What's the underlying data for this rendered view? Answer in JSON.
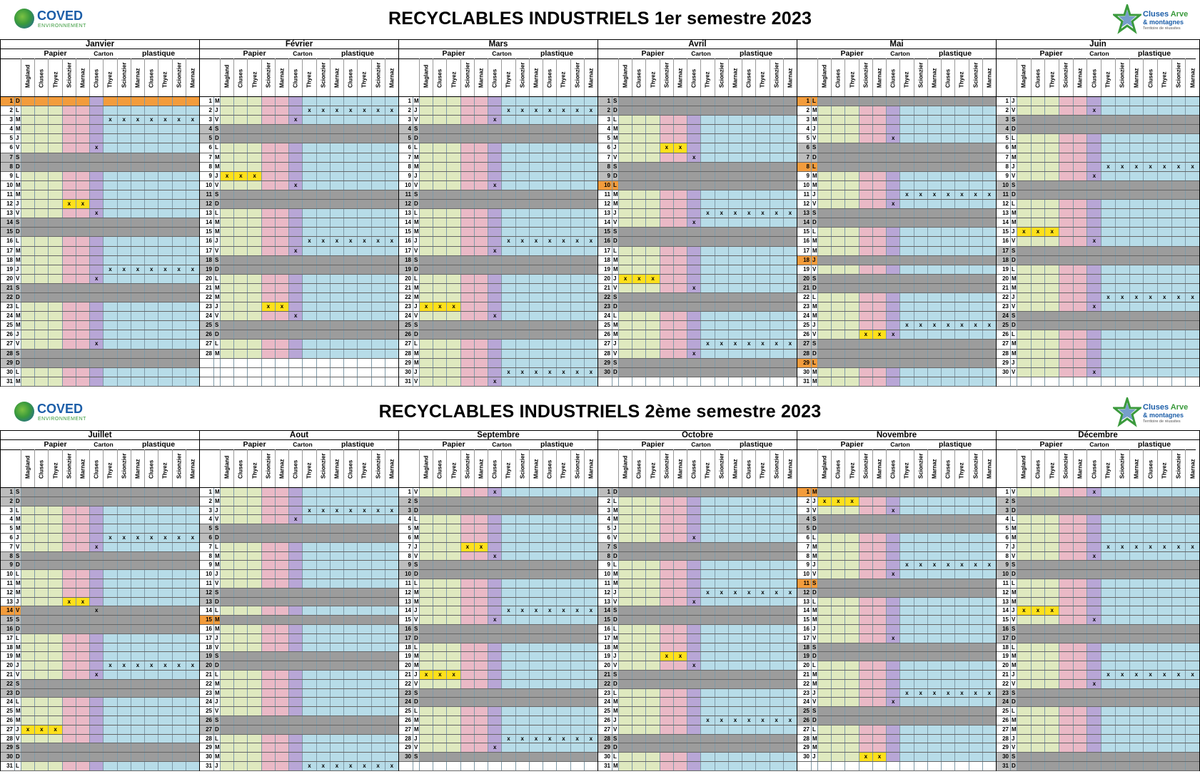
{
  "semesters": [
    {
      "title": "RECYCLABLES  INDUSTRIELS   1er semestre 2023",
      "months": [
        {
          "name": "Janvier",
          "start": 0,
          "days": 31
        },
        {
          "name": "Février",
          "start": 3,
          "days": 28
        },
        {
          "name": "Mars",
          "start": 3,
          "days": 31
        },
        {
          "name": "Avril",
          "start": 6,
          "days": 30
        },
        {
          "name": "Mai",
          "start": 1,
          "days": 31
        },
        {
          "name": "Juin",
          "start": 4,
          "days": 30
        }
      ]
    },
    {
      "title": "RECYCLABLES  INDUSTRIELS 2ème semestre 2023",
      "months": [
        {
          "name": "Juillet",
          "start": 6,
          "days": 31
        },
        {
          "name": "Aout",
          "start": 2,
          "days": 31
        },
        {
          "name": "Septembre",
          "start": 5,
          "days": 30
        },
        {
          "name": "Octobre",
          "start": 0,
          "days": 31
        },
        {
          "name": "Novembre",
          "start": 3,
          "days": 30
        },
        {
          "name": "Décembre",
          "start": 5,
          "days": 31
        }
      ]
    }
  ],
  "logos": {
    "coved_name": "COVED",
    "coved_sub": "ENVIRONNEMENT",
    "cluses_name": "Cluses",
    "cluses_arve": "Arve",
    "cluses_line2": "& montagnes",
    "cluses_tagline": "Territoire de réussites"
  },
  "groups": {
    "papier": "Papier",
    "carton": "Carton",
    "plastique": "plastique"
  },
  "columns": [
    "Magland",
    "Cluses",
    "Thyez",
    "Scionzier",
    "Marnaz",
    "Cluses",
    "Thyez",
    "Scionzier",
    "Marnaz",
    "Cluses",
    "Thyez",
    "Scionzier",
    "Marnaz"
  ],
  "day_letters": [
    "D",
    "L",
    "M",
    "M",
    "J",
    "V",
    "S"
  ],
  "mark": "x",
  "colors": {
    "papier": "#dfe9bf",
    "papier_alt": "#eab9c6",
    "carton": "#b8a6d6",
    "plastique": "#b7dce8",
    "weekend": "#9c9c9c",
    "holiday": "#f39c3c",
    "highlight": "#ffe01b"
  },
  "holidays": {
    "Janvier": [
      1
    ],
    "Avril": [
      10
    ],
    "Mai": [
      1,
      8,
      18,
      29
    ],
    "Juillet": [
      14
    ],
    "Aout": [
      15
    ],
    "Novembre": [
      1,
      11
    ]
  },
  "collections": {
    "Janvier": {
      "yellow": [
        [
          12,
          [
            3,
            4
          ]
        ]
      ],
      "marks": [
        [
          3,
          [
            6,
            7,
            8,
            9,
            10,
            11,
            12
          ]
        ],
        [
          6,
          [
            5
          ]
        ],
        [
          13,
          [
            5
          ]
        ],
        [
          19,
          [
            6,
            7,
            8,
            9,
            10,
            11,
            12
          ]
        ],
        [
          20,
          [
            5
          ]
        ],
        [
          27,
          [
            5
          ]
        ]
      ]
    },
    "Février": {
      "yellow": [
        [
          9,
          [
            0,
            1,
            2
          ]
        ],
        [
          23,
          [
            3,
            4
          ]
        ]
      ],
      "marks": [
        [
          2,
          [
            6,
            7,
            8,
            9,
            10,
            11,
            12
          ]
        ],
        [
          3,
          [
            5
          ]
        ],
        [
          10,
          [
            5
          ]
        ],
        [
          16,
          [
            6,
            7,
            8,
            9,
            10,
            11,
            12
          ]
        ],
        [
          17,
          [
            5
          ]
        ],
        [
          24,
          [
            5
          ]
        ]
      ]
    },
    "Mars": {
      "yellow": [
        [
          23,
          [
            0,
            1,
            2
          ]
        ]
      ],
      "marks": [
        [
          2,
          [
            6,
            7,
            8,
            9,
            10,
            11,
            12
          ]
        ],
        [
          3,
          [
            5
          ]
        ],
        [
          10,
          [
            5
          ]
        ],
        [
          16,
          [
            6,
            7,
            8,
            9,
            10,
            11,
            12
          ]
        ],
        [
          17,
          [
            5
          ]
        ],
        [
          24,
          [
            5
          ]
        ],
        [
          30,
          [
            6,
            7,
            8,
            9,
            10,
            11,
            12
          ]
        ],
        [
          31,
          [
            5
          ]
        ]
      ]
    },
    "Avril": {
      "yellow": [
        [
          6,
          [
            3,
            4
          ]
        ],
        [
          20,
          [
            0,
            1,
            2
          ]
        ]
      ],
      "marks": [
        [
          7,
          [
            5
          ]
        ],
        [
          13,
          [
            6,
            7,
            8,
            9,
            10,
            11,
            12
          ]
        ],
        [
          14,
          [
            5
          ]
        ],
        [
          21,
          [
            5
          ]
        ],
        [
          27,
          [
            6,
            7,
            8,
            9,
            10,
            11,
            12
          ]
        ],
        [
          28,
          [
            5
          ]
        ]
      ]
    },
    "Mai": {
      "yellow": [
        [
          26,
          [
            3,
            4
          ]
        ]
      ],
      "marks": [
        [
          5,
          [
            5
          ]
        ],
        [
          11,
          [
            6,
            7,
            8,
            9,
            10,
            11,
            12
          ]
        ],
        [
          12,
          [
            5
          ]
        ],
        [
          25,
          [
            6,
            7,
            8,
            9,
            10,
            11,
            12
          ]
        ],
        [
          26,
          [
            5
          ]
        ]
      ]
    },
    "Juin": {
      "yellow": [
        [
          15,
          [
            0,
            1,
            2
          ]
        ]
      ],
      "marks": [
        [
          2,
          [
            5
          ]
        ],
        [
          8,
          [
            6,
            7,
            8,
            9,
            10,
            11,
            12
          ]
        ],
        [
          9,
          [
            5
          ]
        ],
        [
          16,
          [
            5
          ]
        ],
        [
          22,
          [
            6,
            7,
            8,
            9,
            10,
            11,
            12
          ]
        ],
        [
          23,
          [
            5
          ]
        ],
        [
          30,
          [
            5
          ]
        ]
      ]
    },
    "Juillet": {
      "yellow": [
        [
          13,
          [
            3,
            4
          ]
        ],
        [
          27,
          [
            0,
            1,
            2
          ]
        ]
      ],
      "marks": [
        [
          6,
          [
            6,
            7,
            8,
            9,
            10,
            11,
            12
          ]
        ],
        [
          7,
          [
            5
          ]
        ],
        [
          14,
          [
            5
          ]
        ],
        [
          20,
          [
            6,
            7,
            8,
            9,
            10,
            11,
            12
          ]
        ],
        [
          21,
          [
            5
          ]
        ]
      ]
    },
    "Aout": {
      "yellow": [],
      "marks": [
        [
          3,
          [
            6,
            7,
            8,
            9,
            10,
            11,
            12
          ]
        ],
        [
          4,
          [
            5
          ]
        ],
        [
          31,
          [
            6,
            7,
            8,
            9,
            10,
            11,
            12
          ]
        ]
      ]
    },
    "Septembre": {
      "yellow": [
        [
          7,
          [
            3,
            4
          ]
        ],
        [
          21,
          [
            0,
            1,
            2
          ]
        ]
      ],
      "marks": [
        [
          1,
          [
            5
          ]
        ],
        [
          8,
          [
            5
          ]
        ],
        [
          14,
          [
            6,
            7,
            8,
            9,
            10,
            11,
            12
          ]
        ],
        [
          15,
          [
            5
          ]
        ],
        [
          28,
          [
            6,
            7,
            8,
            9,
            10,
            11,
            12
          ]
        ],
        [
          29,
          [
            5
          ]
        ]
      ]
    },
    "Octobre": {
      "yellow": [
        [
          19,
          [
            3,
            4
          ]
        ]
      ],
      "marks": [
        [
          6,
          [
            5
          ]
        ],
        [
          12,
          [
            6,
            7,
            8,
            9,
            10,
            11,
            12
          ]
        ],
        [
          13,
          [
            5
          ]
        ],
        [
          20,
          [
            5
          ]
        ],
        [
          26,
          [
            6,
            7,
            8,
            9,
            10,
            11,
            12
          ]
        ]
      ]
    },
    "Novembre": {
      "yellow": [
        [
          2,
          [
            0,
            1,
            2
          ]
        ],
        [
          30,
          [
            3,
            4
          ]
        ]
      ],
      "marks": [
        [
          3,
          [
            5
          ]
        ],
        [
          9,
          [
            6,
            7,
            8,
            9,
            10,
            11,
            12
          ]
        ],
        [
          10,
          [
            5
          ]
        ],
        [
          17,
          [
            5
          ]
        ],
        [
          23,
          [
            6,
            7,
            8,
            9,
            10,
            11,
            12
          ]
        ],
        [
          24,
          [
            5
          ]
        ]
      ]
    },
    "Décembre": {
      "yellow": [
        [
          14,
          [
            0,
            1,
            2
          ]
        ]
      ],
      "marks": [
        [
          1,
          [
            5
          ]
        ],
        [
          7,
          [
            6,
            7,
            8,
            9,
            10,
            11,
            12
          ]
        ],
        [
          8,
          [
            5
          ]
        ],
        [
          15,
          [
            5
          ]
        ],
        [
          21,
          [
            6,
            7,
            8,
            9,
            10,
            11,
            12
          ]
        ],
        [
          22,
          [
            5
          ]
        ]
      ]
    }
  }
}
